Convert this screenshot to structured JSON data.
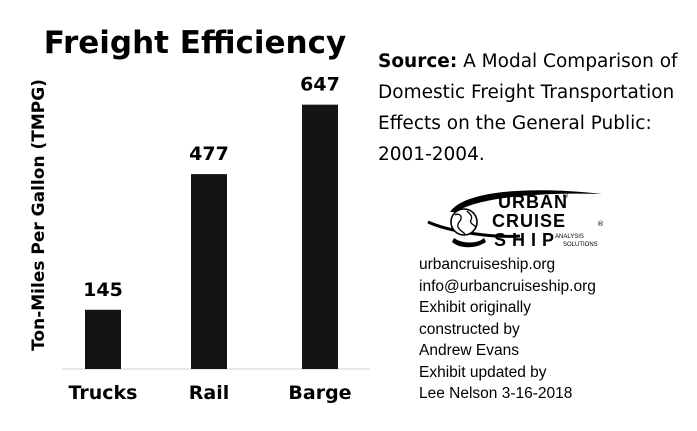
{
  "chart_data": {
    "type": "bar",
    "title": "Freight Efficiency",
    "ylabel": "Ton-Miles Per Gallon (TMPG)",
    "xlabel": "",
    "categories": [
      "Trucks",
      "Rail",
      "Barge"
    ],
    "values": [
      145,
      477,
      647
    ],
    "data_labels": [
      "145",
      "477",
      "647"
    ],
    "ylim": [
      0,
      700
    ],
    "grid": false,
    "legend": "none",
    "bar_color": "#141414"
  },
  "source": {
    "prefix": "Source:",
    "text": "A Modal Comparison of Domestic Freight Transportation Effects on the General Public: 2001-2004."
  },
  "logo": {
    "line1": "URBAN",
    "line2": "CRUISE",
    "line3": "SHIP",
    "tag1": "ANALYSIS",
    "tag2": "SOLUTIONS",
    "reg": "®",
    "icon": "globe-ship-icon"
  },
  "credits": {
    "website": "urbancruiseship.org",
    "email": "info@urbancruiseship.org",
    "line1": "Exhibit originally",
    "line2": "constructed by",
    "line3": "Andrew Evans",
    "line4": "Exhibit updated by",
    "line5": "Lee Nelson 3-16-2018"
  }
}
